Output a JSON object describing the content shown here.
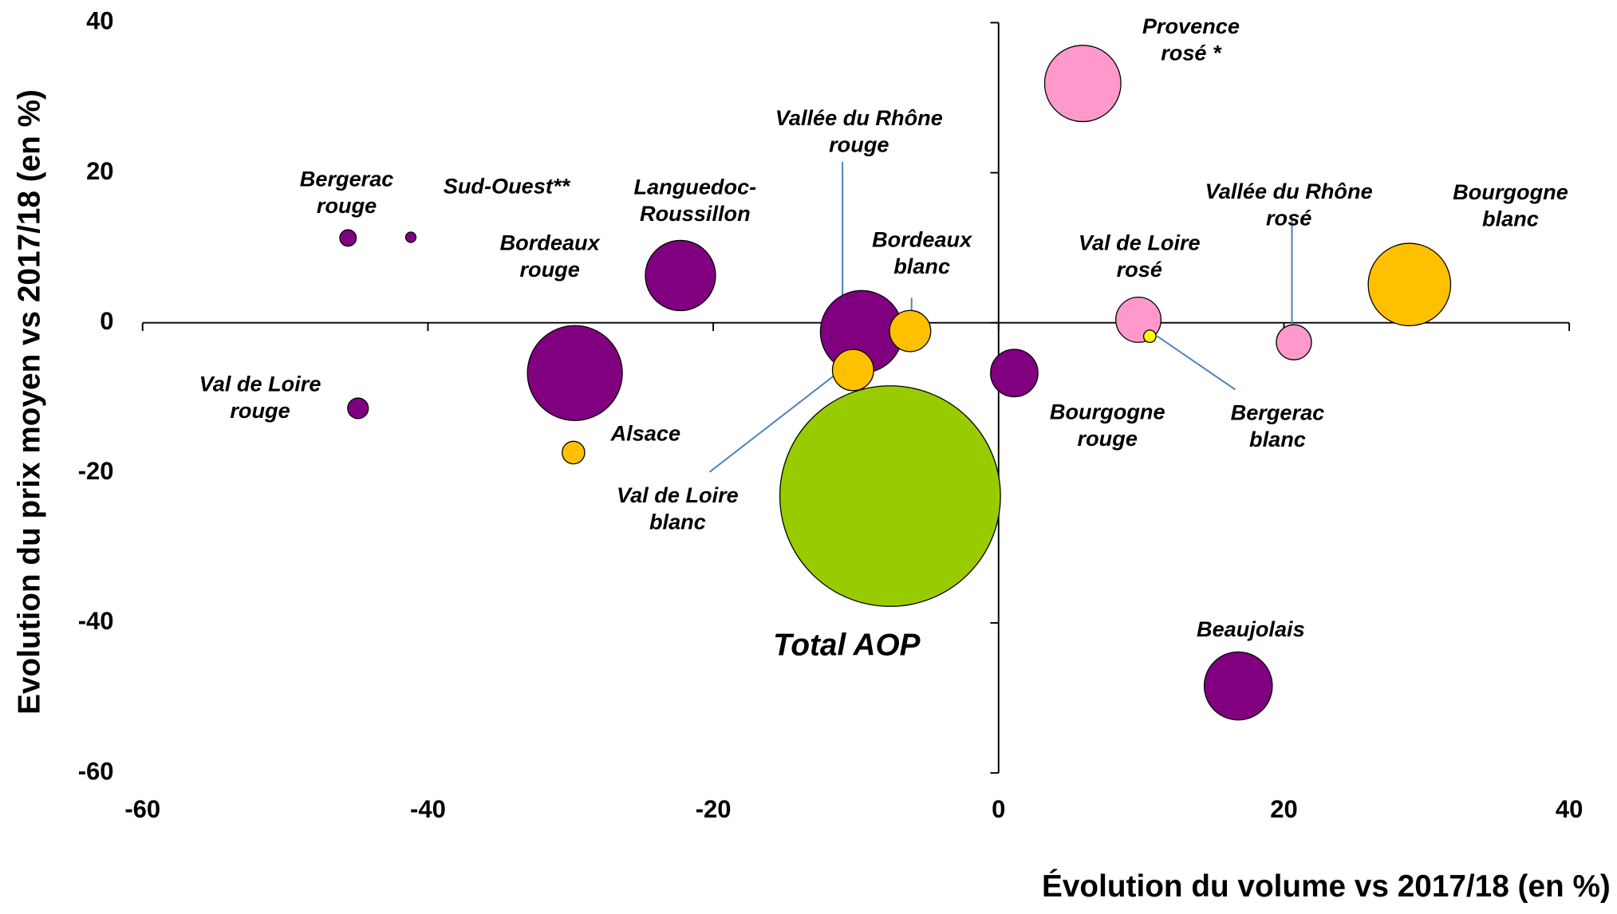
{
  "chart_data": {
    "type": "bubble",
    "xlabel": "Évolution du volume vs 2017/18 (en %)",
    "ylabel": "Evolution du prix moyen vs 2017/18 (en %)",
    "xlim": [
      -60,
      40
    ],
    "xticks": [
      -60,
      -40,
      -20,
      0,
      20,
      40
    ],
    "ylim": [
      -60,
      40
    ],
    "yticks": [
      -60,
      -40,
      -20,
      0,
      20,
      40
    ],
    "labels": [
      [
        "Provence",
        "rosé *"
      ],
      [
        "Bergerac",
        "rouge"
      ],
      [
        "Sud-Ouest**"
      ],
      [
        "Languedoc-",
        "Roussillon"
      ],
      [
        "Bordeaux",
        "rouge"
      ],
      [
        "Val de Loire",
        "rouge"
      ],
      [
        "Alsace"
      ],
      [
        "Vallée du Rhône",
        "rouge"
      ],
      [
        "Bordeaux",
        "blanc"
      ],
      [
        "Val de Loire",
        "blanc"
      ],
      [
        "Total AOP"
      ],
      [
        "Bourgogne",
        "rouge"
      ],
      [
        "Val de Loire",
        "rosé"
      ],
      [
        "Bergerac",
        "blanc"
      ],
      [
        "Vallée du Rhône",
        "rosé"
      ],
      [
        "Bourgogne",
        "blanc"
      ],
      [
        "Beaujolais"
      ]
    ],
    "x": [
      5.9,
      -45.6,
      -41.2,
      -22.3,
      -29.7,
      -44.9,
      -29.8,
      -9.6,
      -6.2,
      -10.2,
      -7.6,
      1.1,
      9.8,
      10.6,
      20.7,
      28.8,
      16.8
    ],
    "values": [
      31.9,
      11.3,
      11.4,
      6.3,
      -6.7,
      -11.4,
      -17.3,
      -1.2,
      -1.1,
      -6.3,
      -23.1,
      -6.7,
      0.4,
      -1.8,
      -2.6,
      5.1,
      -48.4
    ],
    "sizes": [
      13.7,
      0.64,
      0.25,
      11.6,
      21.2,
      1.0,
      1.2,
      16,
      4,
      4,
      114.5,
      5.3,
      4.8,
      0.36,
      2.9,
      16,
      10.9
    ],
    "colors": [
      "#ff99cc",
      "#800080",
      "#800080",
      "#800080",
      "#800080",
      "#800080",
      "#ffc000",
      "#800080",
      "#ffc000",
      "#ffc000",
      "#99cc00",
      "#800080",
      "#ff99cc",
      "#ffff00",
      "#ff99cc",
      "#ffc000",
      "#800080"
    ]
  }
}
